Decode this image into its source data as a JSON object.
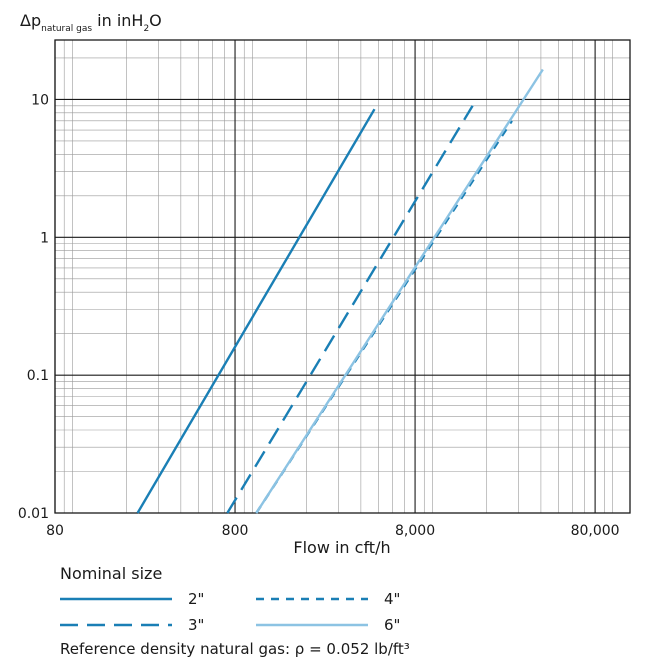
{
  "chart_data": {
    "type": "line",
    "title": "",
    "ylabel_prefix": "Δp",
    "ylabel_sub": "natural gas",
    "ylabel_mid": " in inH",
    "ylabel_sub2": "2",
    "ylabel_end": "O",
    "xlabel": "Flow in cft/h",
    "xscale": "log",
    "yscale": "log",
    "xlim": [
      80,
      125000
    ],
    "ylim": [
      0.01,
      27
    ],
    "grid": true,
    "xticks": [
      {
        "value": 80,
        "label": "80"
      },
      {
        "value": 800,
        "label": "800"
      },
      {
        "value": 8000,
        "label": "8,000"
      },
      {
        "value": 80000,
        "label": "80,000"
      }
    ],
    "yticks": [
      {
        "value": 0.01,
        "label": "0.01"
      },
      {
        "value": 0.1,
        "label": "0.1"
      },
      {
        "value": 1,
        "label": "1"
      },
      {
        "value": 10,
        "label": "10"
      }
    ],
    "series": [
      {
        "name": "2\"",
        "color": "#1a7fb5",
        "style": "solid",
        "x": [
          230,
          4760
        ],
        "y": [
          0.01,
          8.5
        ]
      },
      {
        "name": "3\"",
        "color": "#1a7fb5",
        "style": "dash",
        "x": [
          725,
          16700
        ],
        "y": [
          0.01,
          9.0
        ]
      },
      {
        "name": "4\"",
        "color": "#1a7fb5",
        "style": "shortdash",
        "x": [
          1050,
          27600
        ],
        "y": [
          0.01,
          7.0
        ]
      },
      {
        "name": "6\"",
        "color": "#8cc3e3",
        "style": "solid",
        "x": [
          1050,
          41000
        ],
        "y": [
          0.01,
          16.5
        ]
      }
    ]
  },
  "legend": {
    "title": "Nominal size",
    "items": [
      {
        "label": "2\"",
        "color": "#1a7fb5",
        "style": "solid"
      },
      {
        "label": "4\"",
        "color": "#1a7fb5",
        "style": "shortdash"
      },
      {
        "label": "3\"",
        "color": "#1a7fb5",
        "style": "dash"
      },
      {
        "label": "6\"",
        "color": "#8cc3e3",
        "style": "solid"
      }
    ],
    "note": "Reference density natural gas: ρ = 0.052 lb/ft³"
  }
}
